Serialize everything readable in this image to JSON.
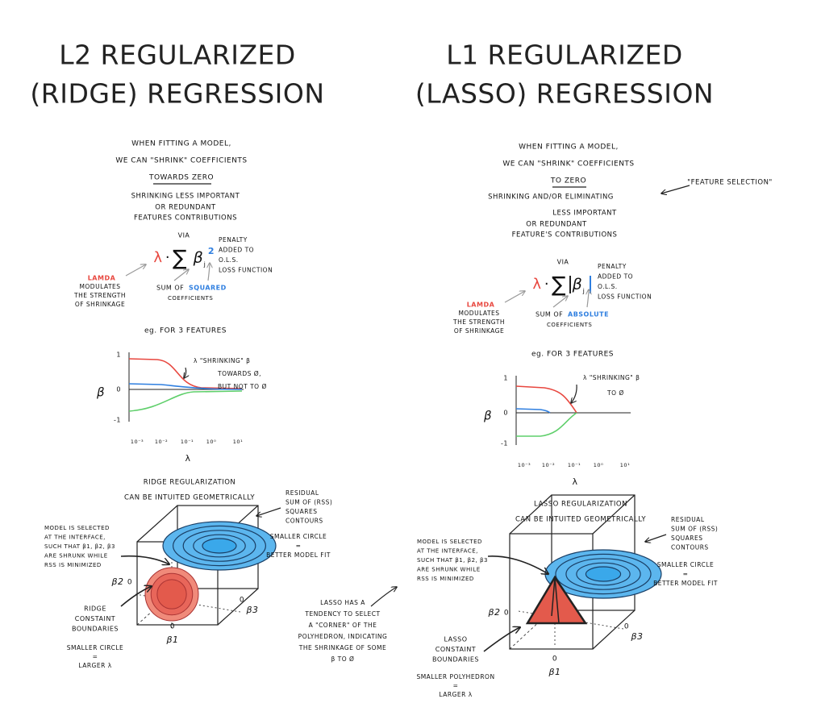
{
  "ridge": {
    "title": [
      "L2 REGULARIZED",
      "(RIDGE) REGRESSION"
    ],
    "intro": [
      "WHEN FITTING A MODEL,",
      "WE CAN \"SHRINK\" COEFFICIENTS",
      "TOWARDS ZERO"
    ],
    "shrink": [
      "SHRINKING LESS IMPORTANT",
      "OR REDUNDANT",
      "FEATURES CONTRIBUTIONS"
    ],
    "via": "VIA",
    "formula": [
      "λ",
      "·",
      "∑",
      "β",
      "j",
      "2"
    ],
    "penalty": [
      "PENALTY",
      "ADDED TO",
      "O.L.S.",
      "LOSS FUNCTION"
    ],
    "lambda_label": "LAMDA",
    "lambda_desc": [
      "MODULATES",
      "THE STRENGTH",
      "OF SHRINKAGE"
    ],
    "sum_of": "SUM OF",
    "sum_kind": "SQUARED",
    "coefficients": "COEFFICIENTS",
    "example": "eg. FOR 3 FEATURES",
    "plot": {
      "y_label": "β",
      "yticks": [
        "1",
        "0",
        "-1"
      ],
      "xticks": [
        "10⁻³",
        "10⁻²",
        "10⁻¹",
        "10⁰",
        "10¹"
      ],
      "x_label": "λ",
      "annotation": [
        "λ \"SHRINKING\" β",
        "TOWARDS Ø,",
        "BUT NOT TO Ø"
      ]
    },
    "geometry": [
      "RIDGE REGULARIZATION",
      "CAN BE INTUITED GEOMETRICALLY"
    ],
    "rss": [
      "RESIDUAL",
      "SUM OF (RSS)",
      "SQUARES",
      "CONTOURS"
    ],
    "fit": [
      "SMALLER CIRCLE",
      "=",
      "BETTER MODEL FIT"
    ],
    "model": [
      "MODEL IS SELECTED",
      "AT THE INTERFACE,",
      "SUCH THAT β1, β2, β3",
      "ARE SHRUNK WHILE",
      "RSS IS MINIMIZED"
    ],
    "axes": {
      "b2": "β2",
      "b3": "β3",
      "b1": "β1",
      "zero": "0"
    },
    "constraint": [
      "RIDGE",
      "CONSTAINT",
      "BOUNDARIES"
    ],
    "note": [
      "SMALLER CIRCLE",
      "=",
      "LARGER λ"
    ]
  },
  "lasso": {
    "title": [
      "L1 REGULARIZED",
      "(LASSO) REGRESSION"
    ],
    "intro": [
      "WHEN FITTING A MODEL,",
      "WE CAN \"SHRINK\" COEFFICIENTS",
      "TO ZERO"
    ],
    "feature_selection": "\"FEATURE SELECTION\"",
    "shrink": [
      "SHRINKING AND/OR ELIMINATING",
      "LESS IMPORTANT",
      "OR REDUNDANT",
      "FEATURE'S CONTRIBUTIONS"
    ],
    "via": "VIA",
    "formula": [
      "λ",
      "·",
      "∑",
      "β",
      "j"
    ],
    "penalty": [
      "PENALTY",
      "ADDED TO",
      "O.L.S.",
      "LOSS FUNCTION"
    ],
    "lambda_label": "LAMDA",
    "lambda_desc": [
      "MODULATES",
      "THE STRENGTH",
      "OF SHRINKAGE"
    ],
    "sum_of": "SUM OF",
    "sum_kind": "ABSOLUTE",
    "coefficients": "COEFFICIENTS",
    "example": "eg. FOR 3 FEATURES",
    "plot": {
      "y_label": "β",
      "yticks": [
        "1",
        "0",
        "-1"
      ],
      "xticks": [
        "10⁻³",
        "10⁻²",
        "10⁻¹",
        "10⁰",
        "10¹"
      ],
      "x_label": "λ",
      "annotation": [
        "λ \"SHRINKING\" β",
        "TO Ø"
      ]
    },
    "geometry": [
      "LASSO REGULARIZATION",
      "CAN BE INTUITED GEOMETRICALLY"
    ],
    "rss": [
      "RESIDUAL",
      "SUM OF (RSS)",
      "SQUARES",
      "CONTOURS"
    ],
    "fit": [
      "SMALLER CIRCLE",
      "=",
      "BETTER MODEL FIT"
    ],
    "model": [
      "MODEL IS SELECTED",
      "AT THE INTERFACE,",
      "SUCH THAT β1, β2, β3",
      "ARE SHRUNK WHILE",
      "RSS IS MINIMIZED"
    ],
    "corner": [
      "LASSO HAS A",
      "TENDENCY TO SELECT",
      "A \"CORNER\" OF THE",
      "POLYHEDRON, INDICATING",
      "THE SHRINKAGE OF SOME",
      "β TO Ø"
    ],
    "axes": {
      "b2": "β2",
      "b3": "β3",
      "b1": "β1",
      "zero": "0"
    },
    "constraint": [
      "LASSO",
      "CONSTAINT",
      "BOUNDARIES"
    ],
    "note": [
      "SMALLER POLYHEDRON",
      "=",
      "LARGER λ"
    ]
  }
}
